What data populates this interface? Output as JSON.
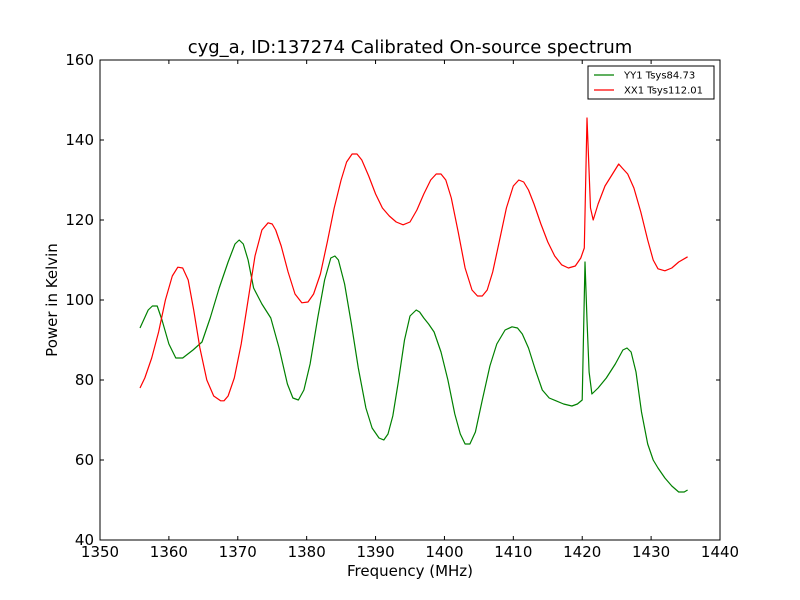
{
  "chart_data": {
    "type": "line",
    "title": "cyg_a, ID:137274 Calibrated On-source spectrum",
    "xlabel": "Frequency (MHz)",
    "ylabel": "Power in Kelvin",
    "xlim": [
      1350,
      1440
    ],
    "ylim": [
      40,
      160
    ],
    "xticks": [
      1350,
      1360,
      1370,
      1380,
      1390,
      1400,
      1410,
      1420,
      1430,
      1440
    ],
    "yticks": [
      40,
      60,
      80,
      100,
      120,
      140,
      160
    ],
    "grid": false,
    "legend_position": "top-right",
    "series": [
      {
        "name": "YY1 Tsys84.73",
        "color": "#008000",
        "x": [
          1355.8,
          1357.0,
          1357.6,
          1358.3,
          1359.0,
          1360.0,
          1361.0,
          1362.0,
          1363.5,
          1364.8,
          1366.0,
          1367.3,
          1368.6,
          1369.6,
          1370.2,
          1370.8,
          1371.5,
          1372.3,
          1373.5,
          1374.8,
          1376.0,
          1377.2,
          1378.0,
          1378.8,
          1379.6,
          1380.5,
          1381.6,
          1382.6,
          1383.5,
          1384.1,
          1384.6,
          1385.5,
          1386.5,
          1387.5,
          1388.6,
          1389.5,
          1390.5,
          1391.2,
          1391.8,
          1392.5,
          1393.3,
          1394.2,
          1395.0,
          1395.9,
          1396.4,
          1397.0,
          1397.7,
          1398.5,
          1399.5,
          1400.5,
          1401.5,
          1402.3,
          1403.0,
          1403.7,
          1404.5,
          1405.5,
          1406.6,
          1407.6,
          1408.8,
          1409.8,
          1410.6,
          1411.3,
          1412.2,
          1413.2,
          1414.2,
          1415.2,
          1416.2,
          1417.3,
          1418.5,
          1419.3,
          1420.0,
          1420.4,
          1420.7,
          1421.0,
          1421.4,
          1422.3,
          1423.5,
          1424.8,
          1425.9,
          1426.5,
          1427.1,
          1427.8,
          1428.6,
          1429.5,
          1430.3,
          1431.0,
          1432.0,
          1433.0,
          1434.0,
          1434.8,
          1435.3
        ],
        "y": [
          93.0,
          97.5,
          98.5,
          98.5,
          95.0,
          89.0,
          85.5,
          85.5,
          87.5,
          89.5,
          95.5,
          103.0,
          109.5,
          114.0,
          115.0,
          114.0,
          110.0,
          103.0,
          99.0,
          95.5,
          88.0,
          79.0,
          75.5,
          75.0,
          77.5,
          84.0,
          95.5,
          105.0,
          110.5,
          111.0,
          110.0,
          104.0,
          94.0,
          83.0,
          73.0,
          68.0,
          65.5,
          65.0,
          66.5,
          71.0,
          79.5,
          90.0,
          96.0,
          97.5,
          97.0,
          95.5,
          94.0,
          92.0,
          87.0,
          80.0,
          71.5,
          66.5,
          64.0,
          64.0,
          67.0,
          75.0,
          83.5,
          89.0,
          92.5,
          93.3,
          93.0,
          91.5,
          88.0,
          82.5,
          77.5,
          75.5,
          74.8,
          74.0,
          73.5,
          74.0,
          75.0,
          109.5,
          95.0,
          82.0,
          76.5,
          78.0,
          80.5,
          84.0,
          87.5,
          88.0,
          87.0,
          82.0,
          72.0,
          64.0,
          60.0,
          58.0,
          55.5,
          53.5,
          52.0,
          52.0,
          52.5
        ]
      },
      {
        "name": "XX1 Tsys112.01",
        "color": "#ff0000",
        "x": [
          1355.8,
          1356.5,
          1357.5,
          1358.5,
          1359.5,
          1360.5,
          1361.3,
          1362.0,
          1362.8,
          1363.6,
          1364.5,
          1365.5,
          1366.5,
          1367.5,
          1368.0,
          1368.6,
          1369.5,
          1370.5,
          1371.5,
          1372.5,
          1373.5,
          1374.4,
          1375.0,
          1375.5,
          1376.3,
          1377.3,
          1378.3,
          1379.3,
          1380.2,
          1381.0,
          1382.0,
          1383.0,
          1384.0,
          1385.0,
          1385.8,
          1386.6,
          1387.3,
          1388.0,
          1389.0,
          1390.0,
          1391.0,
          1392.0,
          1393.0,
          1394.0,
          1395.0,
          1396.0,
          1397.0,
          1398.0,
          1398.8,
          1399.5,
          1400.2,
          1401.0,
          1402.0,
          1403.0,
          1404.0,
          1404.8,
          1405.5,
          1406.2,
          1407.0,
          1408.0,
          1409.0,
          1410.0,
          1410.8,
          1411.5,
          1412.2,
          1413.0,
          1414.0,
          1415.0,
          1416.0,
          1417.0,
          1418.0,
          1419.0,
          1419.8,
          1420.3,
          1420.7,
          1421.2,
          1421.6,
          1422.3,
          1423.3,
          1424.4,
          1425.3,
          1425.8,
          1426.6,
          1427.5,
          1428.5,
          1429.5,
          1430.3,
          1431.0,
          1432.0,
          1433.0,
          1434.0,
          1435.3
        ],
        "y": [
          78.0,
          80.5,
          85.5,
          92.0,
          100.0,
          106.0,
          108.2,
          108.0,
          105.0,
          97.5,
          88.0,
          80.0,
          76.0,
          74.8,
          74.8,
          76.0,
          80.5,
          89.0,
          100.0,
          111.0,
          117.5,
          119.3,
          119.0,
          117.5,
          113.5,
          107.0,
          101.5,
          99.3,
          99.5,
          101.5,
          106.5,
          114.5,
          123.0,
          130.0,
          134.5,
          136.5,
          136.5,
          135.0,
          131.0,
          126.5,
          123.0,
          121.0,
          119.5,
          118.8,
          119.5,
          122.5,
          126.5,
          130.0,
          131.5,
          131.5,
          130.0,
          125.5,
          117.0,
          108.0,
          102.5,
          101.0,
          101.0,
          102.5,
          107.0,
          115.0,
          123.0,
          128.5,
          130.0,
          129.5,
          127.5,
          124.0,
          119.0,
          114.5,
          111.0,
          108.8,
          108.0,
          108.5,
          110.5,
          113.0,
          145.5,
          123.0,
          120.0,
          124.0,
          128.5,
          131.5,
          134.0,
          133.0,
          131.5,
          128.0,
          122.0,
          115.0,
          110.0,
          107.8,
          107.3,
          108.0,
          109.5,
          110.8
        ]
      }
    ]
  }
}
